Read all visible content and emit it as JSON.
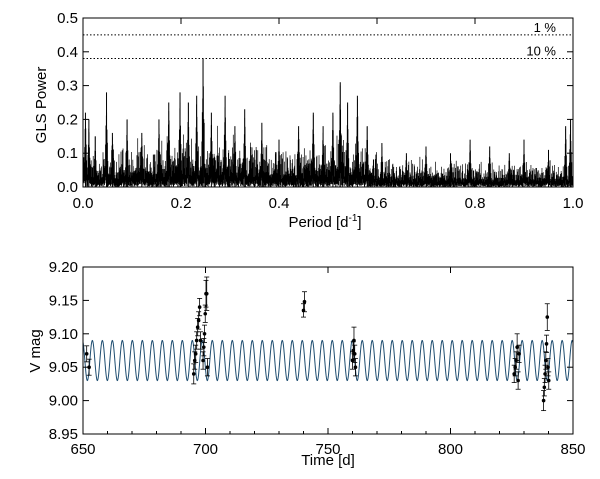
{
  "chart_data": [
    {
      "type": "line",
      "xlabel": "Period [d",
      "xlabel_sup": "-1",
      "xlabel_close": "]",
      "ylabel": "GLS Power",
      "xlim": [
        0.0,
        1.0
      ],
      "ylim": [
        0.0,
        0.5
      ],
      "x_ticks": [
        "0.0",
        "0.2",
        "0.4",
        "0.6",
        "0.8",
        "1.0"
      ],
      "y_ticks": [
        "0.0",
        "0.1",
        "0.2",
        "0.3",
        "0.4",
        "0.5"
      ],
      "grid": false,
      "fap_levels": [
        {
          "label": "1 %",
          "value": 0.45
        },
        {
          "label": "10 %",
          "value": 0.38
        }
      ],
      "peaks": [
        {
          "x": 0.005,
          "y": 0.22
        },
        {
          "x": 0.012,
          "y": 0.2
        },
        {
          "x": 0.025,
          "y": 0.15
        },
        {
          "x": 0.048,
          "y": 0.28
        },
        {
          "x": 0.06,
          "y": 0.16
        },
        {
          "x": 0.09,
          "y": 0.2
        },
        {
          "x": 0.12,
          "y": 0.16
        },
        {
          "x": 0.155,
          "y": 0.2
        },
        {
          "x": 0.175,
          "y": 0.25
        },
        {
          "x": 0.198,
          "y": 0.28
        },
        {
          "x": 0.215,
          "y": 0.25
        },
        {
          "x": 0.232,
          "y": 0.27
        },
        {
          "x": 0.245,
          "y": 0.38
        },
        {
          "x": 0.262,
          "y": 0.22
        },
        {
          "x": 0.29,
          "y": 0.27
        },
        {
          "x": 0.31,
          "y": 0.18
        },
        {
          "x": 0.33,
          "y": 0.23
        },
        {
          "x": 0.365,
          "y": 0.19
        },
        {
          "x": 0.4,
          "y": 0.14
        },
        {
          "x": 0.44,
          "y": 0.18
        },
        {
          "x": 0.47,
          "y": 0.22
        },
        {
          "x": 0.49,
          "y": 0.18
        },
        {
          "x": 0.51,
          "y": 0.22
        },
        {
          "x": 0.525,
          "y": 0.31
        },
        {
          "x": 0.54,
          "y": 0.25
        },
        {
          "x": 0.56,
          "y": 0.27
        },
        {
          "x": 0.58,
          "y": 0.18
        },
        {
          "x": 0.61,
          "y": 0.13
        },
        {
          "x": 0.66,
          "y": 0.1
        },
        {
          "x": 0.7,
          "y": 0.12
        },
        {
          "x": 0.75,
          "y": 0.1
        },
        {
          "x": 0.79,
          "y": 0.14
        },
        {
          "x": 0.83,
          "y": 0.12
        },
        {
          "x": 0.87,
          "y": 0.1
        },
        {
          "x": 0.9,
          "y": 0.14
        },
        {
          "x": 0.95,
          "y": 0.11
        },
        {
          "x": 0.985,
          "y": 0.18
        },
        {
          "x": 0.995,
          "y": 0.2
        }
      ],
      "colors": {
        "line": "#000000",
        "frame": "#000000"
      }
    },
    {
      "type": "scatter",
      "xlabel": "Time [d]",
      "ylabel": "V mag",
      "xlim": [
        650,
        850
      ],
      "ylim": [
        8.95,
        9.2
      ],
      "x_ticks": [
        "650",
        "700",
        "750",
        "800",
        "850"
      ],
      "y_ticks": [
        "8.95",
        "9.00",
        "9.05",
        "9.10",
        "9.15",
        "9.20"
      ],
      "grid": false,
      "model": {
        "mean": 9.06,
        "amplitude": 0.03,
        "period": 4.08
      },
      "points": [
        {
          "x": 651.5,
          "y": 9.07,
          "err": 0.012
        },
        {
          "x": 652.5,
          "y": 9.05,
          "err": 0.012
        },
        {
          "x": 695.2,
          "y": 9.04,
          "err": 0.015
        },
        {
          "x": 695.6,
          "y": 9.06,
          "err": 0.013
        },
        {
          "x": 696.0,
          "y": 9.07,
          "err": 0.013
        },
        {
          "x": 696.4,
          "y": 9.09,
          "err": 0.013
        },
        {
          "x": 696.8,
          "y": 9.11,
          "err": 0.013
        },
        {
          "x": 697.2,
          "y": 9.12,
          "err": 0.013
        },
        {
          "x": 697.6,
          "y": 9.14,
          "err": 0.013
        },
        {
          "x": 698.0,
          "y": 9.09,
          "err": 0.013
        },
        {
          "x": 699.0,
          "y": 9.06,
          "err": 0.013
        },
        {
          "x": 699.3,
          "y": 9.08,
          "err": 0.013
        },
        {
          "x": 699.6,
          "y": 9.1,
          "err": 0.013
        },
        {
          "x": 699.9,
          "y": 9.13,
          "err": 0.013
        },
        {
          "x": 700.2,
          "y": 9.16,
          "err": 0.02
        },
        {
          "x": 700.5,
          "y": 9.16,
          "err": 0.025
        },
        {
          "x": 700.8,
          "y": 9.05,
          "err": 0.013
        },
        {
          "x": 740.0,
          "y": 9.135,
          "err": 0.01
        },
        {
          "x": 740.4,
          "y": 9.148,
          "err": 0.015
        },
        {
          "x": 760.0,
          "y": 9.06,
          "err": 0.013
        },
        {
          "x": 760.3,
          "y": 9.075,
          "err": 0.013
        },
        {
          "x": 760.6,
          "y": 9.09,
          "err": 0.02
        },
        {
          "x": 760.9,
          "y": 9.07,
          "err": 0.013
        },
        {
          "x": 761.2,
          "y": 9.05,
          "err": 0.013
        },
        {
          "x": 826.0,
          "y": 9.04,
          "err": 0.013
        },
        {
          "x": 826.4,
          "y": 9.05,
          "err": 0.013
        },
        {
          "x": 826.8,
          "y": 9.06,
          "err": 0.013
        },
        {
          "x": 827.2,
          "y": 9.08,
          "err": 0.02
        },
        {
          "x": 827.6,
          "y": 9.03,
          "err": 0.013
        },
        {
          "x": 828.0,
          "y": 9.07,
          "err": 0.013
        },
        {
          "x": 838.0,
          "y": 9.0,
          "err": 0.015
        },
        {
          "x": 838.3,
          "y": 9.02,
          "err": 0.013
        },
        {
          "x": 838.6,
          "y": 9.04,
          "err": 0.013
        },
        {
          "x": 838.9,
          "y": 9.06,
          "err": 0.013
        },
        {
          "x": 839.2,
          "y": 9.085,
          "err": 0.013
        },
        {
          "x": 839.5,
          "y": 9.125,
          "err": 0.02
        },
        {
          "x": 839.8,
          "y": 9.05,
          "err": 0.013
        },
        {
          "x": 840.1,
          "y": 9.03,
          "err": 0.013
        }
      ],
      "colors": {
        "model": "#1e4d70",
        "points": "#000000",
        "frame": "#000000"
      }
    }
  ]
}
